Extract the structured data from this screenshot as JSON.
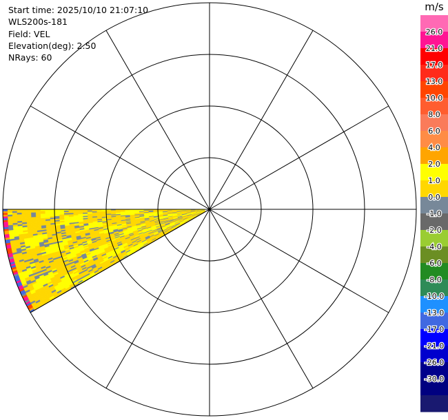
{
  "info": {
    "start_time": "Start time: 2025/10/10 21:07:10",
    "instrument": "WLS200s-181",
    "field": "Field: VEL",
    "elevation": "Elevation(deg): 2.50",
    "nrays": "NRays: 60"
  },
  "chart_data": {
    "type": "heatmap",
    "subtype": "radar-ppi-polar",
    "title": "",
    "field": "VEL",
    "units": "m/s",
    "range_rings": 4,
    "radial_spokes_deg": [
      0,
      30,
      60,
      90,
      120,
      150,
      180,
      210,
      240,
      270,
      300,
      330
    ],
    "data_sector_azimuth_deg": [
      240,
      270
    ],
    "dominant_values": [
      -0.5,
      0.5,
      1.5,
      2.5
    ],
    "colorbar": {
      "label": "m/s",
      "ticks": [
        "26.0",
        "21.0",
        "17.0",
        "13.0",
        "10.0",
        "8.0",
        "6.0",
        "4.0",
        "2.0",
        "1.0",
        "0.0",
        "-1.0",
        "-2.0",
        "-4.0",
        "-6.0",
        "-8.0",
        "-10.0",
        "-13.0",
        "-17.0",
        "-21.0",
        "-26.0",
        "-30.0"
      ],
      "colors": [
        "#ff69b4",
        "#ff1493",
        "#ff0000",
        "#ff2a1a",
        "#ff4500",
        "#ff5d2f",
        "#fa7b5a",
        "#ff8c45",
        "#ffa500",
        "#ffff00",
        "#ffd700",
        "#778899",
        "#696969",
        "#9acd32",
        "#6b8e23",
        "#228b22",
        "#2e8b57",
        "#1e90ff",
        "#4169e1",
        "#0000ff",
        "#0000cd",
        "#00008b",
        "#000080",
        "#191970"
      ]
    }
  }
}
